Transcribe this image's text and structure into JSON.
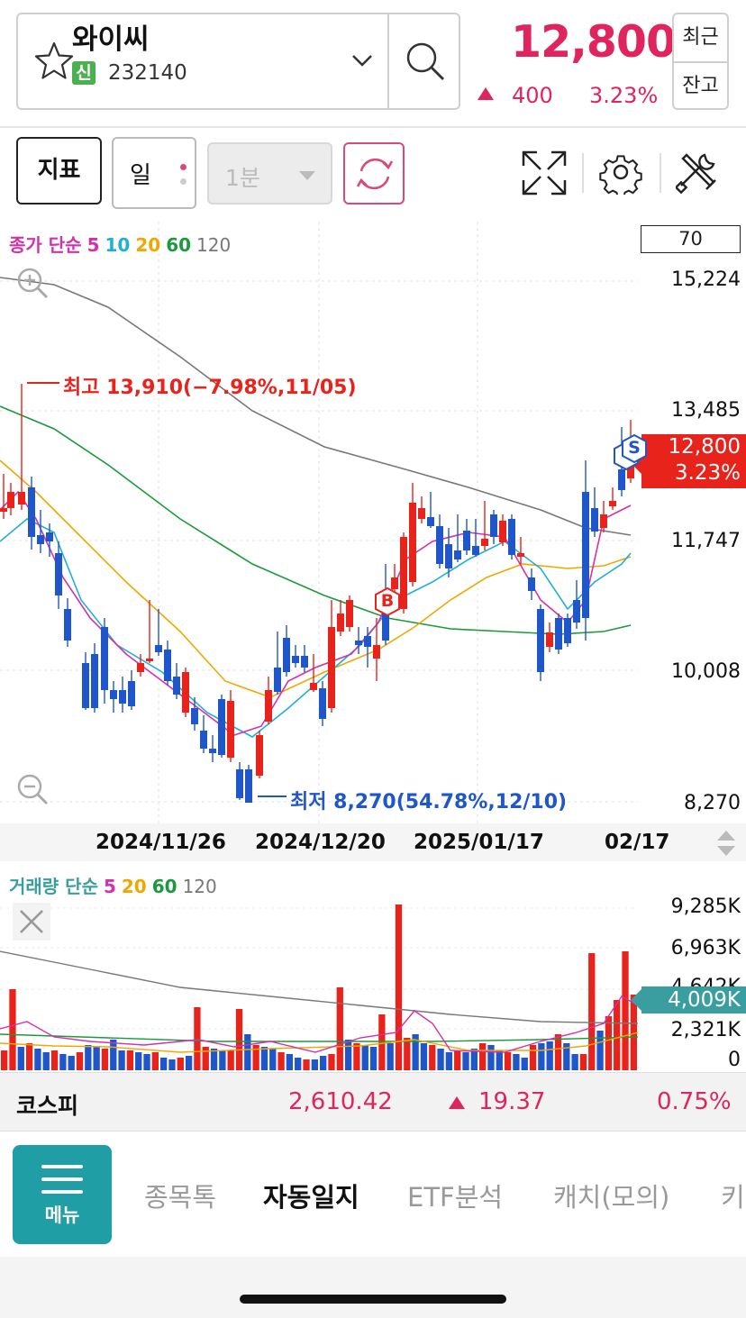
{
  "header": {
    "stock_name": "와이씨",
    "badge": "신",
    "stock_code": "232140",
    "price": "12,800",
    "change": "400",
    "change_pct": "3.23%",
    "recent_label": "최근",
    "balance_label": "잔고"
  },
  "toolbar": {
    "indicator_label": "지표",
    "period_label": "일",
    "minute_label": "1분"
  },
  "chart": {
    "ma_legend": {
      "prefix": "종가 단순",
      "items": [
        {
          "label": "5",
          "color": "#d62fae"
        },
        {
          "label": "10",
          "color": "#1fb0d8"
        },
        {
          "label": "20",
          "color": "#f0a800"
        },
        {
          "label": "60",
          "color": "#1a9a3a"
        },
        {
          "label": "120",
          "color": "#777777"
        }
      ]
    },
    "count_box": "70",
    "y_labels": [
      "15,224",
      "13,485",
      "11,747",
      "10,008",
      "8,270"
    ],
    "current_price": "12,800",
    "current_pct": "3.23%",
    "high_annotation": "최고 13,910(−7.98%,11/05)",
    "low_annotation": "최저 8,270(54.78%,12/10)",
    "buy_marker": "B",
    "sell_marker": "S",
    "dates": [
      "2024/11/26",
      "2024/12/20",
      "2025/01/17",
      "02/17"
    ]
  },
  "volume": {
    "legend": {
      "prefix": "거래량 단순",
      "items": [
        {
          "label": "5",
          "color": "#d62fae"
        },
        {
          "label": "20",
          "color": "#f0a800"
        },
        {
          "label": "60",
          "color": "#1a9a3a"
        },
        {
          "label": "120",
          "color": "#777777"
        }
      ]
    },
    "y_labels": [
      "9,285K",
      "6,963K",
      "4,642K",
      "2,321K",
      "0"
    ],
    "current": "4,009K"
  },
  "market": {
    "name": "코스피",
    "value": "2,610.42",
    "change": "19.37",
    "pct": "0.75%"
  },
  "nav": {
    "menu_label": "메뉴",
    "items": [
      "종목톡",
      "자동일지",
      "ETF분석",
      "캐치(모의)",
      "키"
    ]
  },
  "colors": {
    "up": "#e8231c",
    "down": "#1f56c9",
    "accent": "#1f9fa5",
    "price_text": "#e0245e"
  }
}
